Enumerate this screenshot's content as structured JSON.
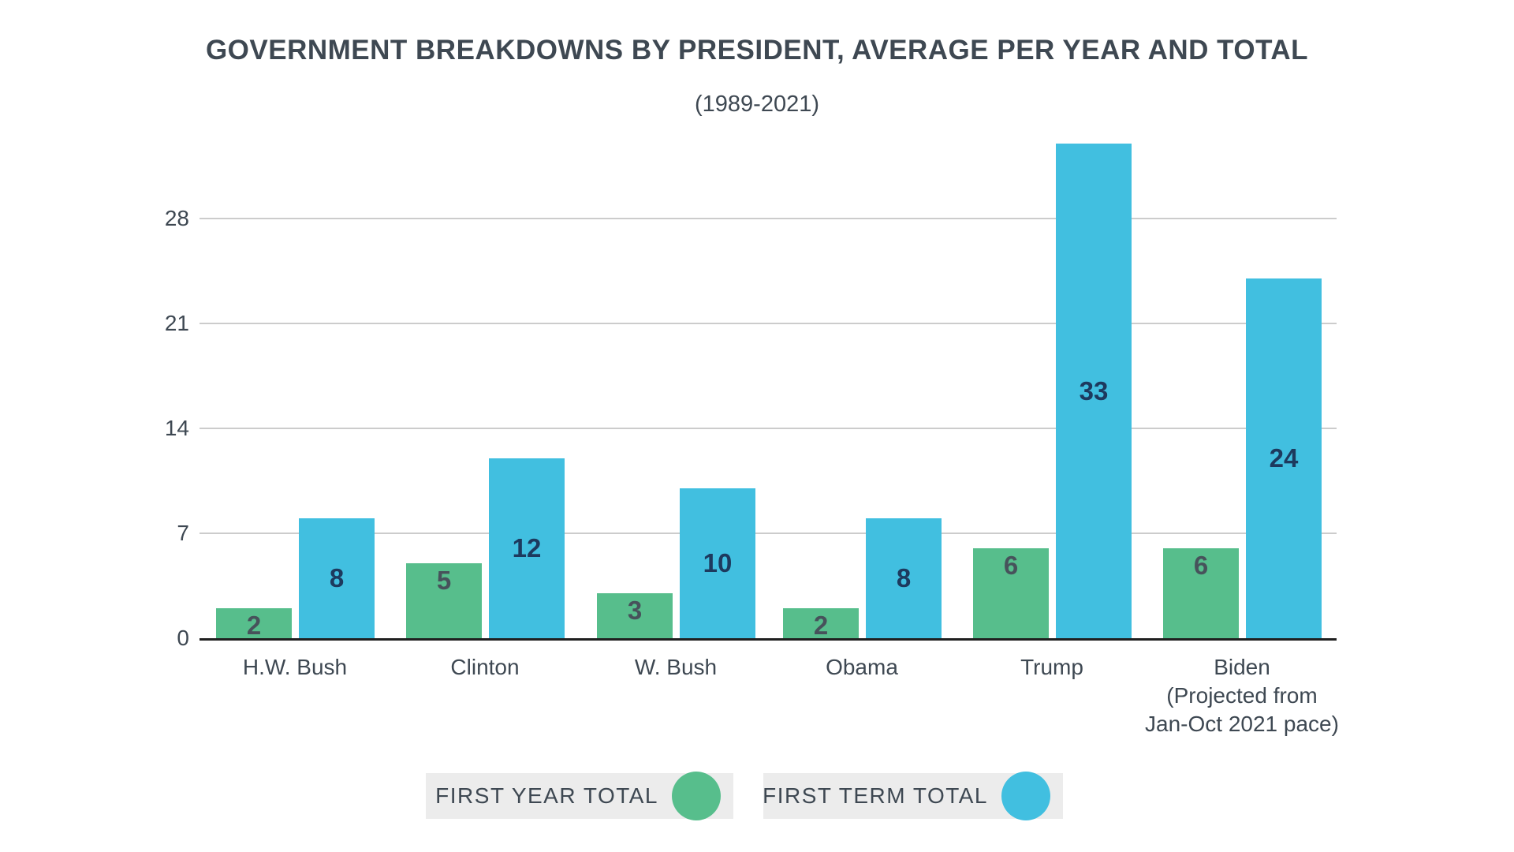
{
  "title": "GOVERNMENT BREAKDOWNS BY PRESIDENT, AVERAGE PER YEAR AND TOTAL",
  "subtitle": "(1989-2021)",
  "chart_data": {
    "type": "bar",
    "title": "GOVERNMENT BREAKDOWNS BY PRESIDENT, AVERAGE PER YEAR AND TOTAL",
    "subtitle": "(1989-2021)",
    "categories": [
      "H.W. Bush",
      "Clinton",
      "W. Bush",
      "Obama",
      "Trump",
      "Biden (Projected from Jan-Oct 2021 pace)"
    ],
    "category_lines": [
      [
        "H.W. Bush"
      ],
      [
        "Clinton"
      ],
      [
        "W. Bush"
      ],
      [
        "Obama"
      ],
      [
        "Trump"
      ],
      [
        "Biden",
        "(Projected from",
        "Jan-Oct 2021 pace)"
      ]
    ],
    "series": [
      {
        "name": "FIRST YEAR TOTAL",
        "color": "#57BE8C",
        "label_color": "#47525B",
        "values": [
          2,
          5,
          3,
          2,
          6,
          6
        ]
      },
      {
        "name": "FIRST TERM TOTAL",
        "color": "#41BFE0",
        "label_color": "#1D3A5E",
        "values": [
          8,
          12,
          10,
          8,
          33,
          24
        ]
      }
    ],
    "y_ticks": [
      0,
      7,
      14,
      21,
      28
    ],
    "ylim": [
      0,
      33
    ],
    "xlabel": "",
    "ylabel": "",
    "grid": "horizontal",
    "legend_position": "bottom",
    "value_labels": "on-bars"
  },
  "legend": {
    "items": [
      {
        "label": "FIRST YEAR TOTAL",
        "color": "#57BE8C"
      },
      {
        "label": "FIRST TERM TOTAL",
        "color": "#41BFE0"
      }
    ]
  },
  "colors": {
    "text_dark": "#3E4852",
    "green_bar": "#57BE8C",
    "blue_bar": "#41BFE0",
    "green_value_label": "#47525B",
    "blue_value_label": "#1D3A5E",
    "gridline": "#CCCCCC",
    "axis_line": "#1F1F1F",
    "legend_bg": "#ECECEC"
  }
}
